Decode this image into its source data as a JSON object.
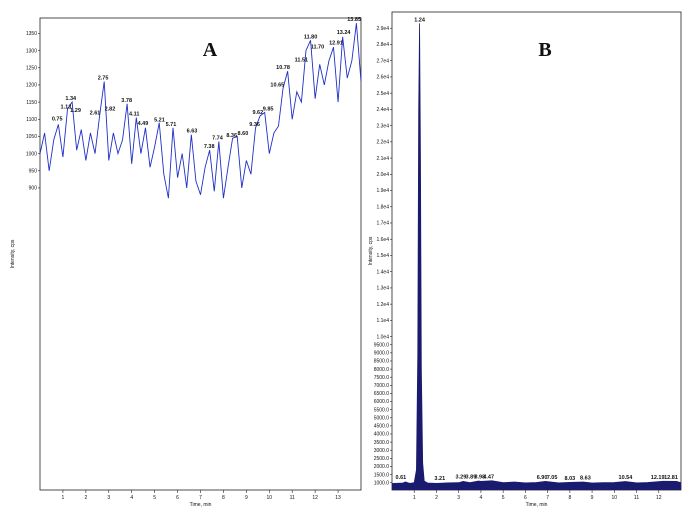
{
  "chart_data": [
    {
      "type": "line",
      "title": "A",
      "x_label": "Time, min",
      "y_label": "Intensity, cps",
      "color": "#1f2fc8",
      "xlim": [
        0,
        14
      ],
      "ylim": [
        20,
        1395
      ],
      "xticks": [
        1,
        2,
        3,
        4,
        5,
        6,
        7,
        8,
        9,
        10,
        11,
        12,
        13
      ],
      "yticks": [
        900,
        950,
        1000,
        1050,
        1100,
        1150,
        1200,
        1250,
        1300,
        1350
      ],
      "x": [
        0.0,
        0.2,
        0.4,
        0.6,
        0.8,
        1.0,
        1.2,
        1.4,
        1.6,
        1.8,
        2.0,
        2.2,
        2.4,
        2.6,
        2.8,
        3.0,
        3.2,
        3.4,
        3.6,
        3.8,
        4.0,
        4.2,
        4.4,
        4.6,
        4.8,
        5.0,
        5.2,
        5.4,
        5.6,
        5.8,
        6.0,
        6.2,
        6.4,
        6.6,
        6.8,
        7.0,
        7.2,
        7.4,
        7.6,
        7.8,
        8.0,
        8.2,
        8.4,
        8.6,
        8.8,
        9.0,
        9.2,
        9.4,
        9.6,
        9.8,
        10.0,
        10.2,
        10.4,
        10.6,
        10.8,
        11.0,
        11.2,
        11.4,
        11.6,
        11.8,
        12.0,
        12.2,
        12.4,
        12.6,
        12.8,
        13.0,
        13.2,
        13.4,
        13.6,
        13.8,
        14.0
      ],
      "values": [
        1000,
        1060,
        950,
        1040,
        1085,
        990,
        1130,
        1150,
        1010,
        1070,
        980,
        1060,
        1000,
        1110,
        1210,
        980,
        1060,
        1000,
        1040,
        1145,
        970,
        1105,
        1000,
        1075,
        960,
        1020,
        1090,
        940,
        870,
        1075,
        930,
        1000,
        900,
        1055,
        920,
        880,
        960,
        1010,
        890,
        1035,
        870,
        960,
        1045,
        1050,
        900,
        980,
        940,
        1075,
        1110,
        1120,
        1000,
        1060,
        1080,
        1190,
        1240,
        1100,
        1180,
        1150,
        1300,
        1330,
        1160,
        1260,
        1200,
        1270,
        1310,
        1150,
        1340,
        1220,
        1270,
        1380,
        1210
      ],
      "annotations": [
        {
          "text": "0.75",
          "x": 0.75,
          "y": 1090
        },
        {
          "text": "1.13",
          "x": 1.13,
          "y": 1125
        },
        {
          "text": "1.34",
          "x": 1.34,
          "y": 1150
        },
        {
          "text": "1.29",
          "x": 1.55,
          "y": 1115
        },
        {
          "text": "2.61",
          "x": 2.4,
          "y": 1108
        },
        {
          "text": "2.75",
          "x": 2.75,
          "y": 1210
        },
        {
          "text": "2.82",
          "x": 3.05,
          "y": 1120
        },
        {
          "text": "3.78",
          "x": 3.78,
          "y": 1145
        },
        {
          "text": "4.11",
          "x": 4.11,
          "y": 1105
        },
        {
          "text": "4.49",
          "x": 4.49,
          "y": 1078
        },
        {
          "text": "5.21",
          "x": 5.21,
          "y": 1088
        },
        {
          "text": "5.71",
          "x": 5.71,
          "y": 1075
        },
        {
          "text": "6.63",
          "x": 6.63,
          "y": 1055
        },
        {
          "text": "7.38",
          "x": 7.38,
          "y": 1010
        },
        {
          "text": "7.74",
          "x": 7.74,
          "y": 1035
        },
        {
          "text": "8.36",
          "x": 8.36,
          "y": 1042
        },
        {
          "text": "8.60",
          "x": 8.85,
          "y": 1048
        },
        {
          "text": "9.36",
          "x": 9.36,
          "y": 1075
        },
        {
          "text": "9.62",
          "x": 9.5,
          "y": 1110
        },
        {
          "text": "9.85",
          "x": 9.95,
          "y": 1120
        },
        {
          "text": "10.65",
          "x": 10.35,
          "y": 1190
        },
        {
          "text": "10.78",
          "x": 10.6,
          "y": 1240
        },
        {
          "text": "11.51",
          "x": 11.4,
          "y": 1262
        },
        {
          "text": "11.80",
          "x": 11.8,
          "y": 1330
        },
        {
          "text": "11.70",
          "x": 12.1,
          "y": 1300
        },
        {
          "text": "12.91",
          "x": 12.91,
          "y": 1312
        },
        {
          "text": "13.24",
          "x": 13.24,
          "y": 1342
        },
        {
          "text": "13.85",
          "x": 13.7,
          "y": 1380
        }
      ]
    },
    {
      "type": "area",
      "title": "B",
      "x_label": "Time, min",
      "y_label": "Intensity, cps",
      "color": "#1a1a6e",
      "xlim": [
        0,
        13
      ],
      "ylim": [
        550,
        30000
      ],
      "xticks": [
        1,
        2,
        3,
        4,
        5,
        6,
        7,
        8,
        9,
        10,
        11,
        12
      ],
      "yticks": [
        {
          "value": 1000,
          "label": "1000.0"
        },
        {
          "value": 1500,
          "label": "1500.0"
        },
        {
          "value": 2000,
          "label": "2000.0"
        },
        {
          "value": 2500,
          "label": "2500.0"
        },
        {
          "value": 3000,
          "label": "3000.0"
        },
        {
          "value": 3500,
          "label": "3500.0"
        },
        {
          "value": 4000,
          "label": "4000.0"
        },
        {
          "value": 4500,
          "label": "4500.0"
        },
        {
          "value": 5000,
          "label": "5000.0"
        },
        {
          "value": 5500,
          "label": "5500.0"
        },
        {
          "value": 6000,
          "label": "6000.0"
        },
        {
          "value": 6500,
          "label": "6500.0"
        },
        {
          "value": 7000,
          "label": "7000.0"
        },
        {
          "value": 7500,
          "label": "7500.0"
        },
        {
          "value": 8000,
          "label": "8000.0"
        },
        {
          "value": 8500,
          "label": "8500.0"
        },
        {
          "value": 9000,
          "label": "9000.0"
        },
        {
          "value": 9500,
          "label": "9500.0"
        },
        {
          "value": 10000,
          "label": "1.0e4"
        },
        {
          "value": 11000,
          "label": "1.1e4"
        },
        {
          "value": 12000,
          "label": "1.2e4"
        },
        {
          "value": 13000,
          "label": "1.3e4"
        },
        {
          "value": 14000,
          "label": "1.4e4"
        },
        {
          "value": 15000,
          "label": "1.5e4"
        },
        {
          "value": 16000,
          "label": "1.6e4"
        },
        {
          "value": 17000,
          "label": "1.7e4"
        },
        {
          "value": 18000,
          "label": "1.8e4"
        },
        {
          "value": 19000,
          "label": "1.9e4"
        },
        {
          "value": 20000,
          "label": "2.0e4"
        },
        {
          "value": 21000,
          "label": "2.1e4"
        },
        {
          "value": 22000,
          "label": "2.2e4"
        },
        {
          "value": 23000,
          "label": "2.3e4"
        },
        {
          "value": 24000,
          "label": "2.4e4"
        },
        {
          "value": 25000,
          "label": "2.5e4"
        },
        {
          "value": 26000,
          "label": "2.6e4"
        },
        {
          "value": 27000,
          "label": "2.7e4"
        },
        {
          "value": 28000,
          "label": "2.8e4"
        },
        {
          "value": 29000,
          "label": "2.9e4"
        }
      ],
      "x": [
        0.0,
        0.5,
        0.6,
        0.8,
        1.0,
        1.1,
        1.16,
        1.2,
        1.24,
        1.28,
        1.32,
        1.38,
        1.45,
        1.6,
        2.0,
        2.5,
        3.0,
        3.2,
        3.5,
        3.9,
        4.0,
        4.5,
        5.0,
        5.5,
        6.0,
        6.5,
        6.9,
        7.05,
        7.5,
        8.0,
        8.6,
        9.0,
        9.5,
        10.0,
        10.5,
        11.0,
        11.5,
        12.2,
        12.8,
        13.0
      ],
      "values": [
        950,
        980,
        1050,
        960,
        1000,
        1800,
        9000,
        24000,
        29300,
        21000,
        8000,
        2200,
        1100,
        980,
        960,
        990,
        1000,
        1080,
        1000,
        1100,
        1080,
        1120,
        1000,
        1040,
        990,
        1010,
        1080,
        1060,
        990,
        1020,
        1040,
        980,
        1000,
        1010,
        1070,
        990,
        1010,
        1090,
        1080,
        1000
      ],
      "annotations": [
        {
          "text": "0.61",
          "x": 0.4,
          "y": 1100
        },
        {
          "text": "1.24",
          "x": 1.24,
          "y": 29300
        },
        {
          "text": "3.21",
          "x": 2.15,
          "y": 1050
        },
        {
          "text": "3.29",
          "x": 3.1,
          "y": 1120
        },
        {
          "text": "3.89",
          "x": 3.55,
          "y": 1140
        },
        {
          "text": "3.98",
          "x": 3.95,
          "y": 1140
        },
        {
          "text": "4.47",
          "x": 4.35,
          "y": 1150
        },
        {
          "text": "6.90",
          "x": 6.75,
          "y": 1100
        },
        {
          "text": "7.05",
          "x": 7.2,
          "y": 1100
        },
        {
          "text": "8.03",
          "x": 8.0,
          "y": 1050
        },
        {
          "text": "8.63",
          "x": 8.7,
          "y": 1060
        },
        {
          "text": "10.54",
          "x": 10.5,
          "y": 1100
        },
        {
          "text": "12.19",
          "x": 11.95,
          "y": 1110
        },
        {
          "text": "12.81",
          "x": 12.55,
          "y": 1110
        }
      ]
    }
  ]
}
